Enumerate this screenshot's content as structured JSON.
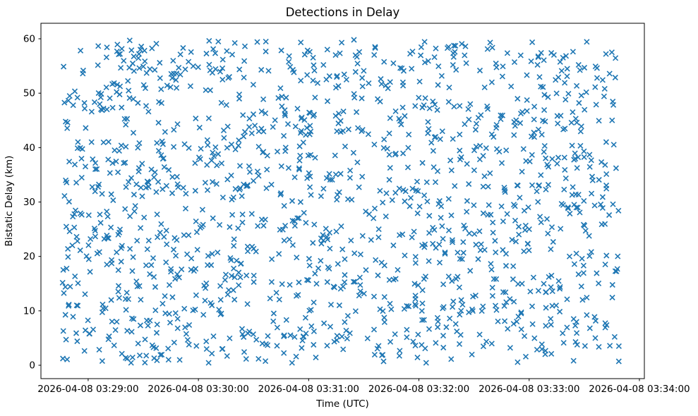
{
  "figure": {
    "background": "#ffffff"
  },
  "chart_data": {
    "type": "scatter",
    "title": "Detections in Delay",
    "xlabel": "Time (UTC)",
    "ylabel": "Bistatic Delay (km)",
    "legend": null,
    "grid": false,
    "marker": "x",
    "marker_color": "#1f77b4",
    "marker_size_px": 7,
    "axis_color": "#000000",
    "x_axis": {
      "tick_labels": [
        "2026-04-08 03:29:00",
        "2026-04-08 03:30:00",
        "2026-04-08 03:31:00",
        "2026-04-08 03:32:00",
        "2026-04-08 03:33:00",
        "2026-04-08 03:34:00"
      ],
      "tick_offsets_seconds": [
        0,
        60,
        120,
        180,
        240,
        300
      ],
      "limits_offsets_seconds": [
        -25.7,
        302.7
      ],
      "reference_time": "2026-04-08 03:29:00"
    },
    "y_axis": {
      "tick_labels": [
        "0",
        "10",
        "20",
        "30",
        "40",
        "50",
        "60"
      ],
      "tick_values": [
        0,
        10,
        20,
        30,
        40,
        50,
        60
      ],
      "limits": [
        -2.46,
        62.85
      ]
    },
    "points": {
      "description": "Dense uniform random scatter of radar detections; exact values not individually legible",
      "count": 1450,
      "seed": 20260408,
      "distribution": "uniform",
      "x_range_offsets_seconds": [
        -14,
        289
      ],
      "y_range_km": [
        0.4,
        59.9
      ]
    }
  }
}
